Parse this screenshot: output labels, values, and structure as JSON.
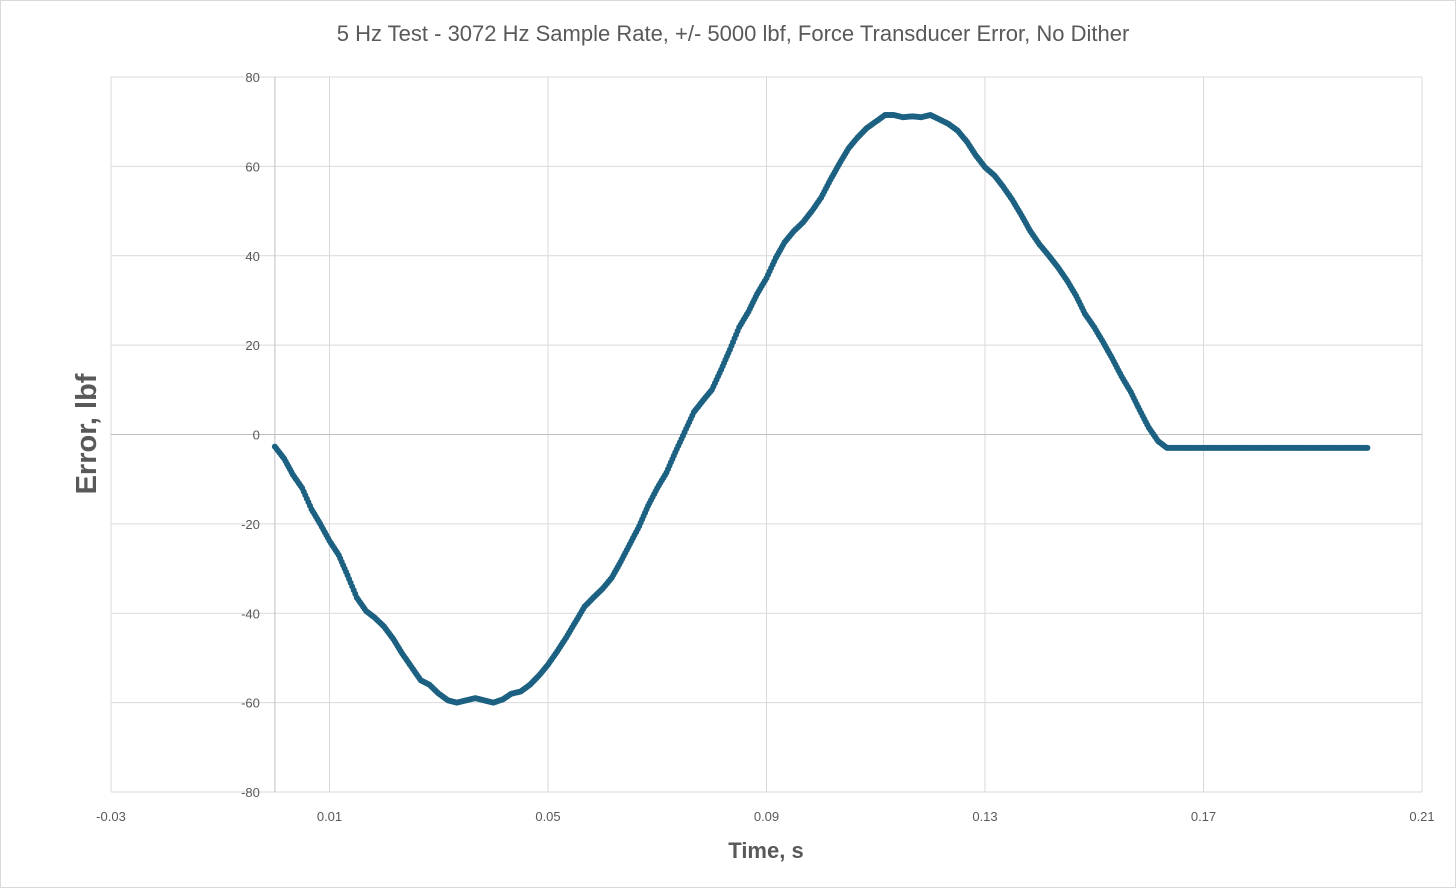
{
  "chart_data": {
    "type": "scatter",
    "title": "5 Hz Test - 3072 Hz Sample Rate, +/- 5000 lbf, Force Transducer Error, No Dither",
    "xlabel": "Time, s",
    "ylabel": "Error, lbf",
    "xlim": [
      -0.03,
      0.21
    ],
    "ylim": [
      -80,
      80
    ],
    "x_ticks": [
      -0.03,
      0.01,
      0.05,
      0.09,
      0.13,
      0.17,
      0.21
    ],
    "x_tick_labels": [
      "-0.03",
      "0.01",
      "0.05",
      "0.09",
      "0.13",
      "0.17",
      "0.21"
    ],
    "y_ticks": [
      80,
      60,
      40,
      20,
      0,
      -20,
      -40,
      -60,
      -80
    ],
    "y_tick_labels": [
      "80",
      "60",
      "40",
      "20",
      "0",
      "-20",
      "-40",
      "-60",
      "-80"
    ],
    "x_gridlines": [
      0.01,
      0.05,
      0.09,
      0.13,
      0.17,
      0.21
    ],
    "y_gridlines": [
      80,
      60,
      40,
      20,
      0,
      -20,
      -40,
      -60
    ],
    "grid": true,
    "legend": "none",
    "colors": {
      "marker": "#1c6182",
      "grid": "#d9d9d9",
      "axis": "#bfbfbf",
      "text": "#595959"
    },
    "series": [
      {
        "x": [
          0.0,
          0.0017,
          0.0033,
          0.005,
          0.0067,
          0.0083,
          0.01,
          0.0117,
          0.0133,
          0.015,
          0.0167,
          0.0183,
          0.02,
          0.0217,
          0.0233,
          0.025,
          0.0267,
          0.0283,
          0.03,
          0.0317,
          0.0333,
          0.035,
          0.0367,
          0.0383,
          0.04,
          0.0417,
          0.0433,
          0.045,
          0.0467,
          0.0483,
          0.05,
          0.0517,
          0.0533,
          0.055,
          0.0567,
          0.0583,
          0.06,
          0.0617,
          0.0633,
          0.065,
          0.0667,
          0.0683,
          0.07,
          0.0717,
          0.0733,
          0.075,
          0.0767,
          0.0783,
          0.08,
          0.0817,
          0.0833,
          0.085,
          0.0867,
          0.0883,
          0.09,
          0.0917,
          0.0933,
          0.095,
          0.0967,
          0.0983,
          0.1,
          0.1017,
          0.1033,
          0.105,
          0.1067,
          0.1083,
          0.11,
          0.1117,
          0.1133,
          0.115,
          0.1167,
          0.1183,
          0.12,
          0.1217,
          0.1233,
          0.125,
          0.1267,
          0.1283,
          0.13,
          0.1317,
          0.1333,
          0.135,
          0.1367,
          0.1383,
          0.14,
          0.1417,
          0.1433,
          0.145,
          0.1467,
          0.1483,
          0.15,
          0.1517,
          0.1533,
          0.155,
          0.1567,
          0.1583,
          0.16,
          0.1617,
          0.1633,
          0.165,
          0.1667,
          0.1683,
          0.17,
          0.1717,
          0.1733,
          0.175,
          0.1767,
          0.1783,
          0.18,
          0.1817,
          0.1833,
          0.185,
          0.1867,
          0.1883,
          0.19,
          0.1917,
          0.1933,
          0.195,
          0.1967,
          0.1983,
          0.2
        ],
        "y": [
          -2.7,
          -5.4,
          -9.0,
          -12.0,
          -16.7,
          -20.0,
          -23.8,
          -27.0,
          -31.5,
          -36.5,
          -39.5,
          -41.0,
          -43.0,
          -45.8,
          -49.0,
          -52.0,
          -55.0,
          -56.0,
          -58.0,
          -59.5,
          -60.0,
          -59.5,
          -59.0,
          -59.5,
          -60.0,
          -59.3,
          -58.0,
          -57.5,
          -56.0,
          -54.0,
          -51.5,
          -48.5,
          -45.5,
          -42.0,
          -38.5,
          -36.5,
          -34.5,
          -32.0,
          -28.5,
          -24.5,
          -20.5,
          -16.0,
          -12.0,
          -8.5,
          -4.0,
          0.5,
          5.0,
          7.5,
          10.0,
          14.5,
          19.0,
          24.0,
          27.5,
          31.5,
          35.0,
          39.5,
          43.0,
          45.5,
          47.5,
          50.0,
          53.0,
          57.0,
          60.5,
          64.0,
          66.5,
          68.5,
          70.0,
          71.5,
          71.5,
          71.0,
          71.2,
          71.0,
          71.5,
          70.5,
          69.5,
          68.0,
          65.5,
          62.5,
          59.8,
          58.0,
          55.5,
          52.5,
          49.0,
          45.5,
          42.5,
          40.0,
          37.5,
          34.5,
          31.0,
          27.0,
          24.0,
          20.5,
          17.0,
          13.0,
          9.5,
          5.5,
          1.5,
          -1.5,
          -3.0,
          -3.0,
          -3.0,
          -3.0,
          -3.0,
          -3.0,
          -3.0,
          -3.0,
          -3.0,
          -3.0,
          -3.0,
          -3.0,
          -3.0,
          -3.0,
          -3.0,
          -3.0,
          -3.0,
          -3.0,
          -3.0,
          -3.0,
          -3.0,
          -3.0,
          -3.0
        ]
      }
    ]
  }
}
